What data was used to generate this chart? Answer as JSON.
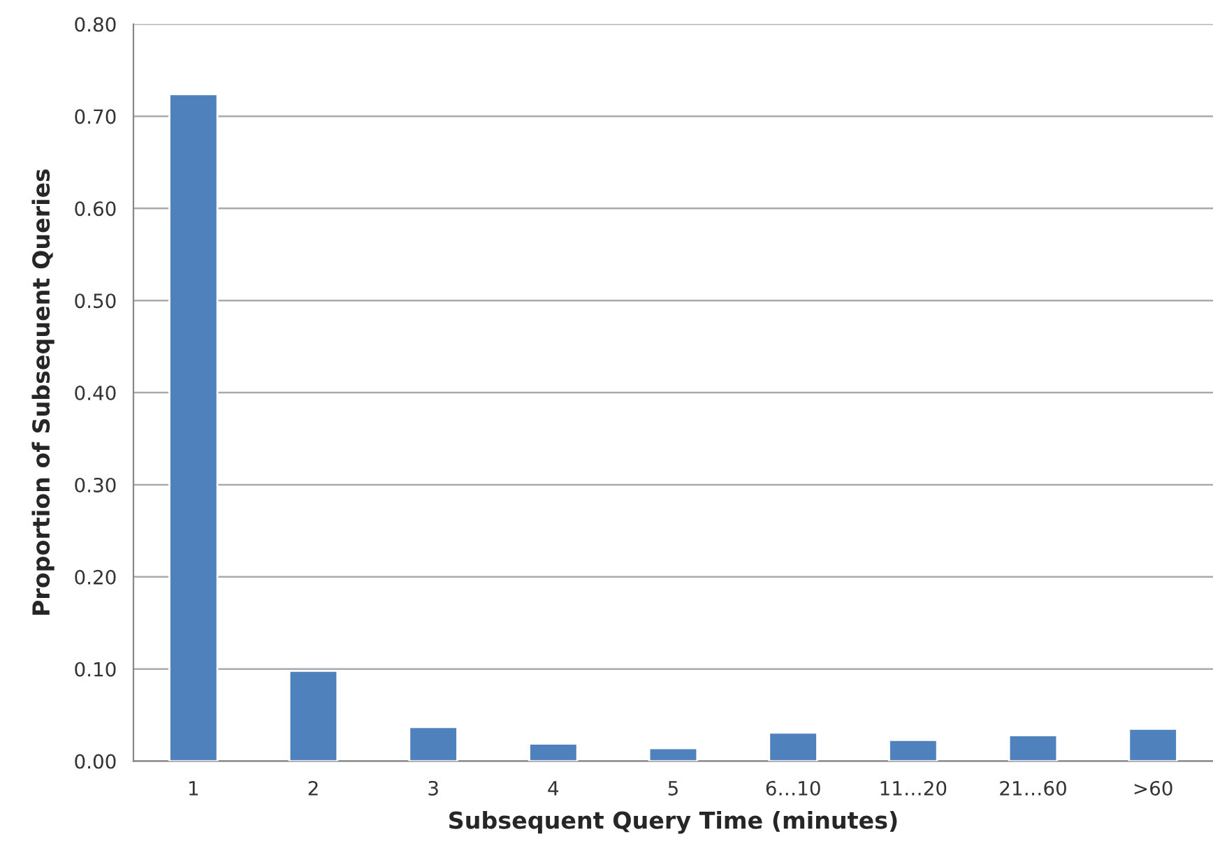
{
  "chart_data": {
    "type": "bar",
    "xlabel": "Subsequent Query Time (minutes)",
    "ylabel": "Proportion of Subsequent Queries",
    "categories": [
      "1",
      "2",
      "3",
      "4",
      "5",
      "6…10",
      "11…20",
      "21…60",
      ">60"
    ],
    "values": [
      0.724,
      0.098,
      0.037,
      0.019,
      0.014,
      0.031,
      0.023,
      0.028,
      0.035
    ],
    "color": "#4f81bd",
    "ylim": [
      0,
      0.8
    ],
    "yticks": [
      {
        "value": 0,
        "label": "0.00"
      },
      {
        "value": 0.1,
        "label": "0.10"
      },
      {
        "value": 0.2,
        "label": "0.20"
      },
      {
        "value": 0.3,
        "label": "0.30"
      },
      {
        "value": 0.4,
        "label": "0.40"
      },
      {
        "value": 0.5,
        "label": "0.50"
      },
      {
        "value": 0.6,
        "label": "0.60"
      },
      {
        "value": 0.7,
        "label": "0.70"
      },
      {
        "value": 0.8,
        "label": "0.80"
      }
    ],
    "grid": "y"
  }
}
